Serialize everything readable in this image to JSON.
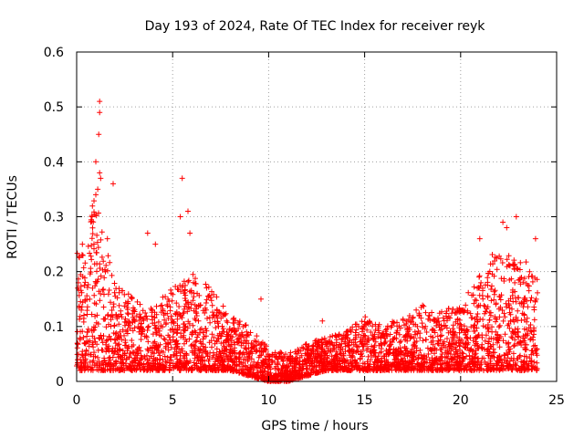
{
  "chart_data": {
    "type": "scatter",
    "title": "Day 193 of 2024, Rate Of TEC Index for receiver reyk",
    "xlabel": "GPS time / hours",
    "ylabel": "ROTI / TECUs",
    "xlim": [
      0,
      25
    ],
    "ylim": [
      0,
      0.6
    ],
    "xticks": [
      0,
      5,
      10,
      15,
      20,
      25
    ],
    "yticks": [
      0,
      0.1,
      0.2,
      0.3,
      0.4,
      0.5,
      0.6
    ],
    "xtick_labels": [
      "0",
      "5",
      "10",
      "15",
      "20",
      "25"
    ],
    "ytick_labels": [
      "0",
      "0.1",
      "0.2",
      "0.3",
      "0.4",
      "0.5",
      "0.6"
    ],
    "grid": true,
    "marker": "+",
    "series": [
      {
        "name": "ROTI",
        "color": "#ff0000",
        "envelope_hours": [
          0,
          0.5,
          1,
          1.5,
          2,
          3,
          4,
          5,
          6,
          7,
          8,
          9,
          10,
          11,
          12,
          13,
          14,
          15,
          16,
          17,
          18,
          19,
          20,
          21,
          22,
          23,
          24
        ],
        "envelope_max": [
          0.25,
          0.22,
          0.38,
          0.25,
          0.18,
          0.15,
          0.14,
          0.17,
          0.2,
          0.17,
          0.12,
          0.1,
          0.06,
          0.05,
          0.07,
          0.08,
          0.09,
          0.12,
          0.1,
          0.12,
          0.14,
          0.13,
          0.14,
          0.2,
          0.25,
          0.22,
          0.22
        ],
        "envelope_min": [
          0.02,
          0.02,
          0.02,
          0.02,
          0.02,
          0.02,
          0.02,
          0.02,
          0.02,
          0.02,
          0.02,
          0.01,
          0.0,
          0.0,
          0.01,
          0.02,
          0.02,
          0.02,
          0.02,
          0.02,
          0.02,
          0.02,
          0.02,
          0.02,
          0.02,
          0.02,
          0.02
        ],
        "notable_points": [
          {
            "x": 1.2,
            "y": 0.51
          },
          {
            "x": 1.2,
            "y": 0.49
          },
          {
            "x": 1.15,
            "y": 0.45
          },
          {
            "x": 1.0,
            "y": 0.4
          },
          {
            "x": 1.2,
            "y": 0.38
          },
          {
            "x": 1.25,
            "y": 0.37
          },
          {
            "x": 1.9,
            "y": 0.36
          },
          {
            "x": 5.5,
            "y": 0.37
          },
          {
            "x": 1.0,
            "y": 0.34
          },
          {
            "x": 1.1,
            "y": 0.35
          },
          {
            "x": 0.8,
            "y": 0.3
          },
          {
            "x": 5.8,
            "y": 0.31
          },
          {
            "x": 5.4,
            "y": 0.3
          },
          {
            "x": 3.7,
            "y": 0.27
          },
          {
            "x": 4.1,
            "y": 0.25
          },
          {
            "x": 5.9,
            "y": 0.27
          },
          {
            "x": 22.9,
            "y": 0.3
          },
          {
            "x": 22.2,
            "y": 0.29
          },
          {
            "x": 22.4,
            "y": 0.28
          },
          {
            "x": 21.0,
            "y": 0.26
          },
          {
            "x": 23.9,
            "y": 0.26
          },
          {
            "x": 0.3,
            "y": 0.25
          },
          {
            "x": 1.6,
            "y": 0.26
          },
          {
            "x": 12.8,
            "y": 0.11
          },
          {
            "x": 9.6,
            "y": 0.15
          }
        ]
      }
    ]
  }
}
